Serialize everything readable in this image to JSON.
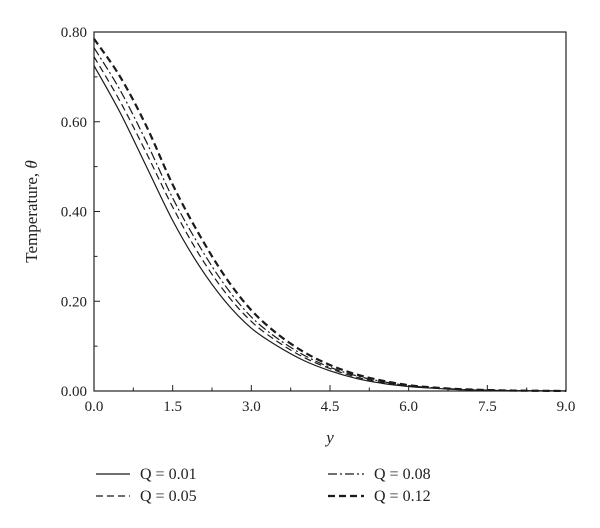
{
  "chart_data": {
    "type": "line",
    "title": "",
    "xlabel": "y",
    "ylabel": "Temperature, ",
    "ylabel_symbol": "θ",
    "xlim": [
      0,
      9
    ],
    "ylim": [
      0,
      0.8
    ],
    "x_ticks": [
      "0.0",
      "1.5",
      "3.0",
      "4.5",
      "6.0",
      "7.5",
      "9.0"
    ],
    "y_ticks": [
      "0.00",
      "0.20",
      "0.40",
      "0.60",
      "0.80"
    ],
    "grid": false,
    "legend_position": "bottom",
    "x": [
      0,
      0.5,
      1,
      1.5,
      2,
      2.5,
      3,
      3.5,
      4,
      4.5,
      5,
      5.5,
      6,
      6.5,
      7,
      7.5,
      8,
      8.5,
      9
    ],
    "series": [
      {
        "name": "Q = 0.01",
        "style": "solid",
        "values": [
          0.725,
          0.62,
          0.5,
          0.38,
          0.28,
          0.2,
          0.14,
          0.1,
          0.068,
          0.045,
          0.028,
          0.017,
          0.01,
          0.006,
          0.003,
          0.0015,
          0.0008,
          0.0003,
          0.0001
        ]
      },
      {
        "name": "Q = 0.05",
        "style": "dashed",
        "values": [
          0.745,
          0.645,
          0.53,
          0.41,
          0.305,
          0.22,
          0.155,
          0.11,
          0.075,
          0.05,
          0.031,
          0.019,
          0.011,
          0.0065,
          0.0035,
          0.0018,
          0.0009,
          0.0004,
          0.0001
        ]
      },
      {
        "name": "Q = 0.08",
        "style": "dashdot",
        "values": [
          0.765,
          0.67,
          0.555,
          0.43,
          0.325,
          0.235,
          0.165,
          0.117,
          0.08,
          0.053,
          0.034,
          0.021,
          0.012,
          0.007,
          0.0038,
          0.002,
          0.001,
          0.0004,
          0.0001
        ]
      },
      {
        "name": "Q = 0.12",
        "style": "bold-dashed",
        "values": [
          0.785,
          0.7,
          0.59,
          0.46,
          0.35,
          0.255,
          0.18,
          0.127,
          0.087,
          0.058,
          0.037,
          0.023,
          0.013,
          0.0075,
          0.004,
          0.0021,
          0.001,
          0.0005,
          0.0001
        ]
      }
    ]
  }
}
